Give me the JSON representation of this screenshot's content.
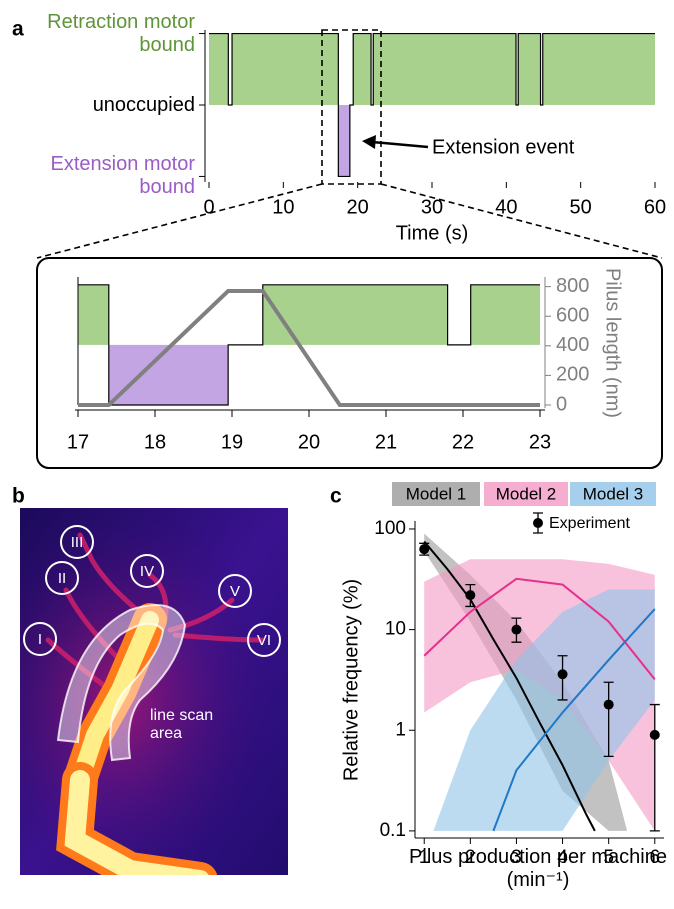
{
  "panel_labels": [
    "a",
    "b",
    "c"
  ],
  "image_panel": {
    "region_labels": [
      "I",
      "II",
      "III",
      "IV",
      "V",
      "VI"
    ],
    "annotation": "line scan area"
  },
  "chart_data": [
    {
      "type": "step",
      "x": [
        0,
        2.6,
        3.1,
        17.4,
        18.95,
        19.4,
        21.8,
        22.1,
        41.3,
        41.6,
        44.6,
        44.9,
        60
      ],
      "values": [
        1,
        0,
        1,
        -1,
        0,
        1,
        0,
        1,
        0,
        1,
        0,
        1,
        1
      ],
      "xlim": [
        0,
        60
      ],
      "xticks": [
        0,
        10,
        20,
        30,
        40,
        50,
        60
      ],
      "xlabel": "Time (s)",
      "ylim": [
        -1.05,
        1.05
      ],
      "yticks": [
        {
          "value": 1,
          "label": "Retraction motor bound"
        },
        {
          "value": 0,
          "label": "unoccupied"
        },
        {
          "value": -1,
          "label": "Extension motor bound"
        }
      ],
      "ytick_colors": [
        "#5f9437",
        "#000000",
        "#9a5cc6"
      ],
      "bound_color": "#a9d18e",
      "extension_color": "#c3a5e3",
      "annotation": "Extension event"
    },
    {
      "type": "step",
      "x": [
        17,
        17.4,
        18.95,
        19.4,
        21.8,
        22.1,
        23
      ],
      "values": [
        1,
        -1,
        0,
        1,
        0,
        1,
        1
      ],
      "xlim": [
        17,
        23
      ],
      "xticks": [
        17,
        18,
        19,
        20,
        21,
        22,
        23
      ],
      "ylim": [
        -1,
        1.13
      ],
      "bound_color": "#a9d18e",
      "extension_color": "#c3a5e3",
      "y2lim": [
        0,
        865
      ],
      "y2ticks": [
        0,
        200,
        400,
        600,
        800
      ],
      "y2label": "Pilus length (nm)",
      "line": {
        "x": [
          17,
          17.4,
          18.95,
          19.4,
          20.4,
          23
        ],
        "values": [
          0,
          0,
          770,
          770,
          0,
          0
        ],
        "color": "#808080",
        "axis": "y2"
      }
    },
    {
      "type": "line",
      "log_y": true,
      "xlim": [
        0.8,
        6.2
      ],
      "xticks": [
        1,
        2,
        3,
        4,
        5,
        6
      ],
      "ylim": [
        0.085,
        120
      ],
      "yticks": [
        0.1,
        1,
        10,
        100
      ],
      "xlabel": "Pilus production per machine (min⁻¹)",
      "ylabel": "Relative frequency (%)",
      "series": [
        {
          "name": "Model 1",
          "color": "#000000",
          "band_color": "#9a9a9a",
          "x": [
            1,
            1.5,
            2,
            2.5,
            3,
            3.5,
            4,
            4.5,
            4.7
          ],
          "values": [
            75,
            40,
            20,
            8,
            3.3,
            1.2,
            0.45,
            0.15,
            0.1
          ],
          "band_x": [
            1,
            2,
            3,
            4,
            5,
            5.4
          ],
          "band_low": [
            60,
            12,
            2,
            0.25,
            0.1,
            0.1
          ],
          "band_high": [
            90,
            35,
            12,
            3,
            0.5,
            0.1
          ]
        },
        {
          "name": "Model 2",
          "color": "#e8308a",
          "band_color": "#f49ac4",
          "x": [
            1,
            2,
            3,
            4,
            5,
            6
          ],
          "values": [
            5.5,
            15,
            32,
            28,
            12,
            3.2
          ],
          "band_x": [
            1,
            2,
            3,
            4,
            5,
            6
          ],
          "band_low": [
            1.5,
            3,
            4,
            2,
            0.5,
            0.1
          ],
          "band_high": [
            30,
            50,
            50,
            50,
            45,
            35
          ]
        },
        {
          "name": "Model 3",
          "color": "#1f78c8",
          "band_color": "#8fc3e8",
          "x": [
            2.5,
            3,
            4,
            5,
            6
          ],
          "values": [
            0.1,
            0.4,
            1.5,
            5,
            16
          ],
          "band_x": [
            1.2,
            2,
            3,
            4,
            5,
            6
          ],
          "band_low": [
            0.1,
            0.1,
            0.1,
            0.1,
            0.5,
            2
          ],
          "band_high": [
            0.1,
            1,
            5,
            15,
            25,
            25
          ]
        }
      ],
      "experiment": {
        "name": "Experiment",
        "color": "#000000",
        "x": [
          1,
          2,
          3,
          4,
          5,
          6
        ],
        "values": [
          63,
          22,
          10,
          3.6,
          1.8,
          0.9
        ],
        "err_low": [
          55,
          17,
          7.5,
          2,
          0.55,
          0.1
        ],
        "err_high": [
          72,
          28,
          13,
          5.5,
          3,
          1.8
        ]
      }
    }
  ]
}
